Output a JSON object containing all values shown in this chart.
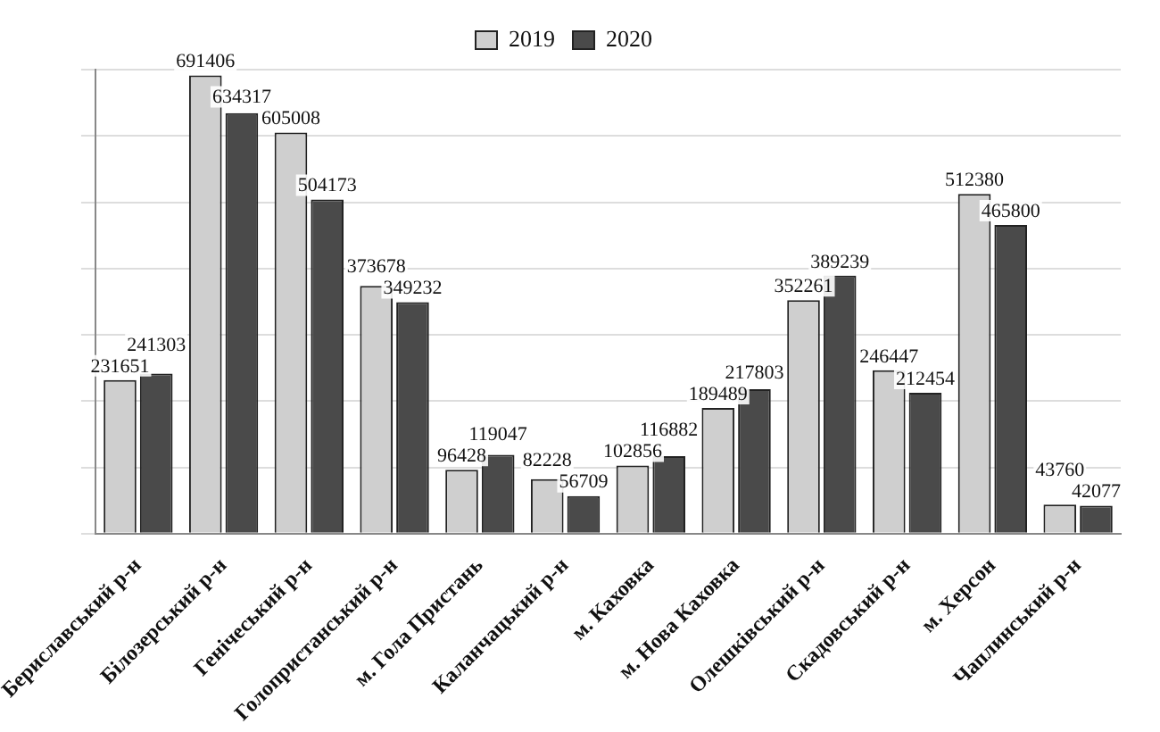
{
  "chart_data": {
    "type": "bar",
    "categories": [
      "Бериславський р-н",
      "Білозерський р-н",
      "Генічеський р-н",
      "Голопристанський р-н",
      "м. Гола Пристань",
      "Каланчацький р-н",
      "м. Каховка",
      "м. Нова Каховка",
      "Олешківський р-н",
      "Скадовський р-н",
      "м. Херсон",
      "Чаплинський р-н"
    ],
    "series": [
      {
        "name": "2019",
        "color": "#cfcfcf",
        "values": [
          231651,
          691406,
          605008,
          373678,
          96428,
          82228,
          102856,
          189489,
          352261,
          246447,
          512380,
          43760
        ]
      },
      {
        "name": "2020",
        "color": "#4a4a4a",
        "values": [
          241303,
          634317,
          504173,
          349232,
          119047,
          56709,
          116882,
          217803,
          389239,
          212454,
          465800,
          42077
        ]
      }
    ],
    "ylim": [
      0,
      700000
    ],
    "yticks": [
      {
        "value": 0,
        "label": null
      },
      {
        "value": 100000,
        "label": null
      },
      {
        "value": 200000,
        "label": null
      },
      {
        "value": 300000,
        "label": null
      },
      {
        "value": 400000,
        "label": null
      },
      {
        "value": 500000,
        "label": null
      },
      {
        "value": 600000,
        "label": null
      },
      {
        "value": 700000,
        "label": null
      }
    ],
    "tick_labels": "x",
    "grid": "y",
    "legend": "top",
    "data_labels": true
  }
}
